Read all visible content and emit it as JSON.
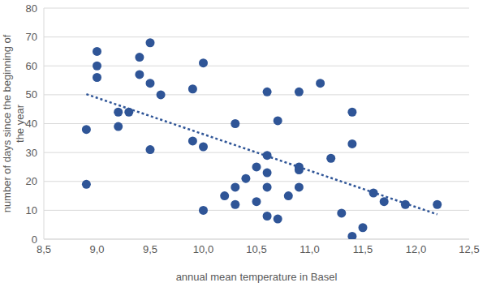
{
  "chart_data": {
    "type": "scatter",
    "x_label": "annual mean temperature in Basel",
    "y_label": "number of days since the beginning of the year",
    "xlim": [
      8.5,
      12.5
    ],
    "ylim": [
      0,
      80
    ],
    "xticks": [
      {
        "value": 8.5,
        "label": "8,5"
      },
      {
        "value": 9.0,
        "label": "9,0"
      },
      {
        "value": 9.5,
        "label": "9,5"
      },
      {
        "value": 10.0,
        "label": "10,0"
      },
      {
        "value": 10.5,
        "label": "10,5"
      },
      {
        "value": 11.0,
        "label": "11,0"
      },
      {
        "value": 11.5,
        "label": "11,5"
      },
      {
        "value": 12.0,
        "label": "12,0"
      },
      {
        "value": 12.5,
        "label": "12,5"
      }
    ],
    "yticks": [
      0,
      10,
      20,
      30,
      40,
      50,
      60,
      70,
      80
    ],
    "grid": true,
    "series": [
      {
        "type": "scatter",
        "marker": "circle",
        "color": "#2f5597",
        "x": [
          8.9,
          8.9,
          9.0,
          9.0,
          9.0,
          9.2,
          9.2,
          9.3,
          9.4,
          9.4,
          9.5,
          9.5,
          9.5,
          9.6,
          9.9,
          9.9,
          10.0,
          10.0,
          10.0,
          10.2,
          10.3,
          10.3,
          10.3,
          10.4,
          10.5,
          10.5,
          10.6,
          10.6,
          10.6,
          10.6,
          10.6,
          10.7,
          10.7,
          10.8,
          10.9,
          10.9,
          10.9,
          10.9,
          11.1,
          11.2,
          11.3,
          11.4,
          11.4,
          11.4,
          11.5,
          11.6,
          11.7,
          11.9,
          12.2
        ],
        "values": [
          38,
          19,
          65,
          60,
          56,
          44,
          39,
          44,
          63,
          57,
          68,
          54,
          31,
          50,
          52,
          34,
          61,
          32,
          10,
          15,
          40,
          18,
          12,
          21,
          25,
          13,
          51,
          29,
          23,
          18,
          8,
          41,
          7,
          15,
          51,
          25,
          24,
          18,
          54,
          28,
          9,
          44,
          33,
          1,
          4,
          16,
          13,
          12,
          12
        ]
      },
      {
        "type": "line",
        "line_style": "dotted",
        "color": "#2f5597",
        "x": [
          8.9,
          12.2
        ],
        "values": [
          50.2,
          8.6
        ]
      }
    ]
  }
}
